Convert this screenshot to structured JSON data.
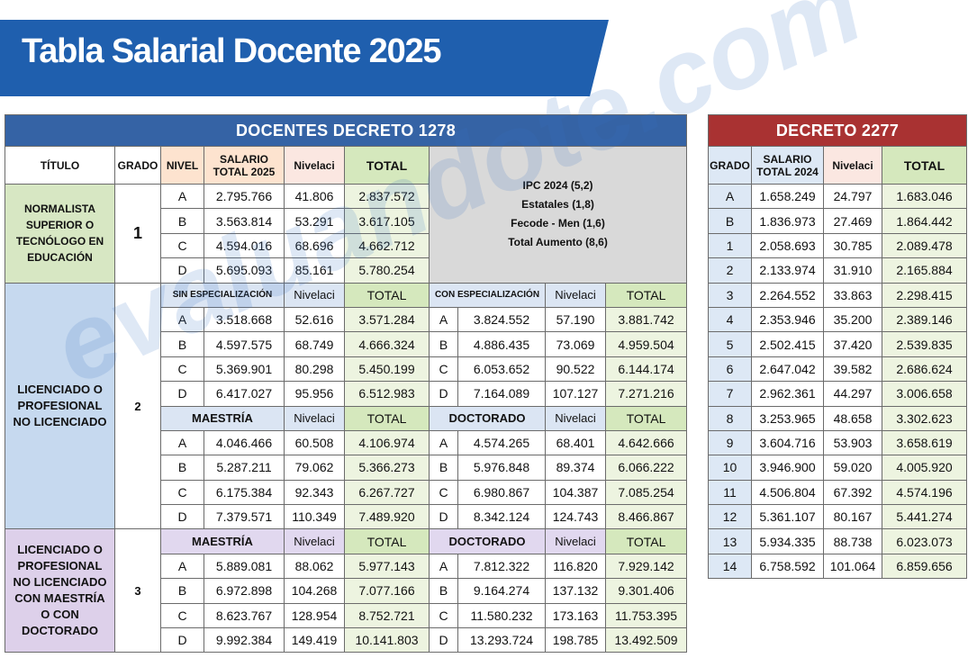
{
  "header": {
    "title": "Tabla Salarial Docente 2025"
  },
  "watermark": "evaluandote.com",
  "decreto_1278": {
    "title": "DOCENTES DECRETO 1278",
    "columns": [
      "TÍTULO",
      "GRADO",
      "NIVEL",
      "SALARIO TOTAL 2025",
      "Nivelaci",
      "TOTAL"
    ],
    "note": [
      "IPC 2024 (5,2)",
      "Estatales (1,8)",
      "Fecode - Men (1,6)",
      "Total Aumento (8,6)"
    ],
    "groups": [
      {
        "title": "NORMALISTA SUPERIOR O TECNÓLOGO EN EDUCACIÓN",
        "grade": "1",
        "rows": [
          [
            "A",
            "2.795.766",
            "41.806",
            "2.837.572"
          ],
          [
            "B",
            "3.563.814",
            "53.291",
            "3.617.105"
          ],
          [
            "C",
            "4.594.016",
            "68.696",
            "4.662.712"
          ],
          [
            "D",
            "5.695.093",
            "85.161",
            "5.780.254"
          ]
        ]
      },
      {
        "title": "LICENCIADO O PROFESIONAL NO LICENCIADO",
        "grade": "2",
        "sections": [
          {
            "left": {
              "label": "SIN ESPECIALIZACIÓN",
              "nivelaci": "Nivelaci",
              "total": "TOTAL",
              "rows": [
                [
                  "A",
                  "3.518.668",
                  "52.616",
                  "3.571.284"
                ],
                [
                  "B",
                  "4.597.575",
                  "68.749",
                  "4.666.324"
                ],
                [
                  "C",
                  "5.369.901",
                  "80.298",
                  "5.450.199"
                ],
                [
                  "D",
                  "6.417.027",
                  "95.956",
                  "6.512.983"
                ]
              ]
            },
            "right": {
              "label": "CON ESPECIALIZACIÓN",
              "nivelaci": "Nivelaci",
              "total": "TOTAL",
              "rows": [
                [
                  "A",
                  "3.824.552",
                  "57.190",
                  "3.881.742"
                ],
                [
                  "B",
                  "4.886.435",
                  "73.069",
                  "4.959.504"
                ],
                [
                  "C",
                  "6.053.652",
                  "90.522",
                  "6.144.174"
                ],
                [
                  "D",
                  "7.164.089",
                  "107.127",
                  "7.271.216"
                ]
              ]
            }
          },
          {
            "left": {
              "label": "MAESTRÍA",
              "nivelaci": "Nivelaci",
              "total": "TOTAL",
              "rows": [
                [
                  "A",
                  "4.046.466",
                  "60.508",
                  "4.106.974"
                ],
                [
                  "B",
                  "5.287.211",
                  "79.062",
                  "5.366.273"
                ],
                [
                  "C",
                  "6.175.384",
                  "92.343",
                  "6.267.727"
                ],
                [
                  "D",
                  "7.379.571",
                  "110.349",
                  "7.489.920"
                ]
              ]
            },
            "right": {
              "label": "DOCTORADO",
              "nivelaci": "Nivelaci",
              "total": "TOTAL",
              "rows": [
                [
                  "A",
                  "4.574.265",
                  "68.401",
                  "4.642.666"
                ],
                [
                  "B",
                  "5.976.848",
                  "89.374",
                  "6.066.222"
                ],
                [
                  "C",
                  "6.980.867",
                  "104.387",
                  "7.085.254"
                ],
                [
                  "D",
                  "8.342.124",
                  "124.743",
                  "8.466.867"
                ]
              ]
            }
          }
        ]
      },
      {
        "title": "LICENCIADO O PROFESIONAL NO LICENCIADO CON MAESTRÍA O CON DOCTORADO",
        "grade": "3",
        "sections": [
          {
            "left": {
              "label": "MAESTRÍA",
              "nivelaci": "Nivelaci",
              "total": "TOTAL",
              "rows": [
                [
                  "A",
                  "5.889.081",
                  "88.062",
                  "5.977.143"
                ],
                [
                  "B",
                  "6.972.898",
                  "104.268",
                  "7.077.166"
                ],
                [
                  "C",
                  "8.623.767",
                  "128.954",
                  "8.752.721"
                ],
                [
                  "D",
                  "9.992.384",
                  "149.419",
                  "10.141.803"
                ]
              ]
            },
            "right": {
              "label": "DOCTORADO",
              "nivelaci": "Nivelaci",
              "total": "TOTAL",
              "rows": [
                [
                  "A",
                  "7.812.322",
                  "116.820",
                  "7.929.142"
                ],
                [
                  "B",
                  "9.164.274",
                  "137.132",
                  "9.301.406"
                ],
                [
                  "C",
                  "11.580.232",
                  "173.163",
                  "11.753.395"
                ],
                [
                  "D",
                  "13.293.724",
                  "198.785",
                  "13.492.509"
                ]
              ]
            }
          }
        ]
      }
    ]
  },
  "decreto_2277": {
    "title": "DECRETO 2277",
    "columns": [
      "GRADO",
      "SALARIO TOTAL 2024",
      "Nivelaci",
      "TOTAL"
    ],
    "rows": [
      [
        "A",
        "1.658.249",
        "24.797",
        "1.683.046"
      ],
      [
        "B",
        "1.836.973",
        "27.469",
        "1.864.442"
      ],
      [
        "1",
        "2.058.693",
        "30.785",
        "2.089.478"
      ],
      [
        "2",
        "2.133.974",
        "31.910",
        "2.165.884"
      ],
      [
        "3",
        "2.264.552",
        "33.863",
        "2.298.415"
      ],
      [
        "4",
        "2.353.946",
        "35.200",
        "2.389.146"
      ],
      [
        "5",
        "2.502.415",
        "37.420",
        "2.539.835"
      ],
      [
        "6",
        "2.647.042",
        "39.582",
        "2.686.624"
      ],
      [
        "7",
        "2.962.361",
        "44.297",
        "3.006.658"
      ],
      [
        "8",
        "3.253.965",
        "48.658",
        "3.302.623"
      ],
      [
        "9",
        "3.604.716",
        "53.903",
        "3.658.619"
      ],
      [
        "10",
        "3.946.900",
        "59.020",
        "4.005.920"
      ],
      [
        "11",
        "4.506.804",
        "67.392",
        "4.574.196"
      ],
      [
        "12",
        "5.361.107",
        "80.167",
        "5.441.274"
      ],
      [
        "13",
        "5.934.335",
        "88.738",
        "6.023.073"
      ],
      [
        "14",
        "6.758.592",
        "101.064",
        "6.859.656"
      ]
    ]
  }
}
